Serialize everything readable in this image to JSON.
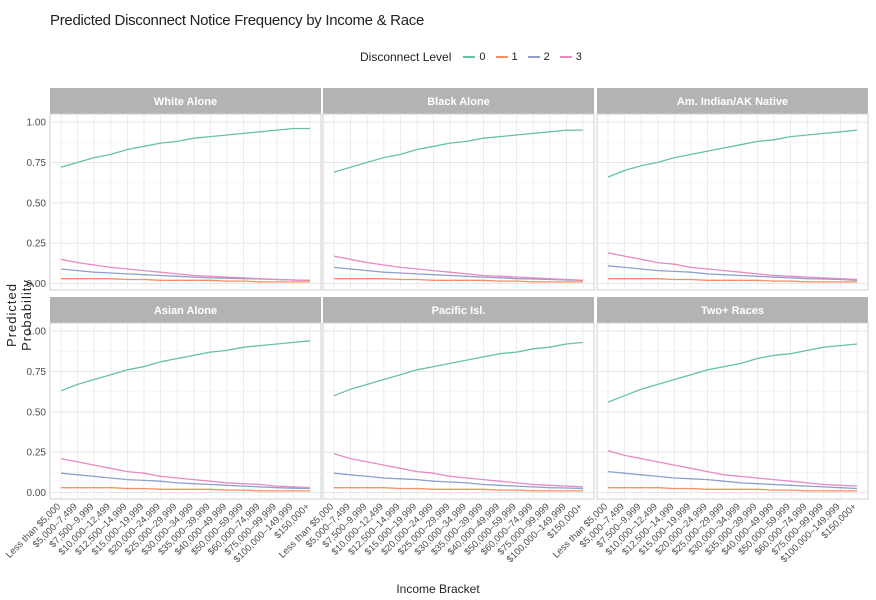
{
  "chart_data": {
    "type": "line",
    "title": "Predicted Disconnect Notice Frequency by Income & Race",
    "xlabel": "Income Bracket",
    "ylabel": "Predicted Probability",
    "ylim": [
      -0.04,
      1.05
    ],
    "yticks": [
      "0.00",
      "0.25",
      "0.50",
      "0.75",
      "1.00"
    ],
    "yticks_values": [
      0,
      0.25,
      0.5,
      0.75,
      1.0
    ],
    "grid": true,
    "legend": {
      "title": "Disconnect Level",
      "placement": "top",
      "entries": [
        {
          "label": "0",
          "color": "#66c2a5"
        },
        {
          "label": "1",
          "color": "#fc8d62"
        },
        {
          "label": "2",
          "color": "#8da0cb"
        },
        {
          "label": "3",
          "color": "#e78ac3"
        }
      ]
    },
    "categories": [
      "Less than $5,000",
      "$5,000–7,499",
      "$7,500–9,999",
      "$10,000–12,499",
      "$12,500–14,999",
      "$15,000–19,999",
      "$20,000–24,999",
      "$25,000–29,999",
      "$30,000–34,999",
      "$35,000–39,999",
      "$40,000–49,999",
      "$50,000–59,999",
      "$60,000–74,999",
      "$75,000–99,999",
      "$100,000–149,999",
      "$150,000+"
    ],
    "panels": [
      {
        "name": "White Alone",
        "series": [
          {
            "name": "0",
            "values": [
              0.72,
              0.75,
              0.78,
              0.8,
              0.83,
              0.85,
              0.87,
              0.88,
              0.9,
              0.91,
              0.92,
              0.93,
              0.94,
              0.95,
              0.96,
              0.96
            ]
          },
          {
            "name": "1",
            "values": [
              0.03,
              0.03,
              0.03,
              0.03,
              0.025,
              0.025,
              0.02,
              0.02,
              0.02,
              0.02,
              0.015,
              0.015,
              0.01,
              0.01,
              0.01,
              0.01
            ]
          },
          {
            "name": "2",
            "values": [
              0.09,
              0.08,
              0.07,
              0.065,
              0.06,
              0.055,
              0.05,
              0.045,
              0.04,
              0.035,
              0.033,
              0.03,
              0.028,
              0.025,
              0.022,
              0.02
            ]
          },
          {
            "name": "3",
            "values": [
              0.15,
              0.13,
              0.115,
              0.1,
              0.09,
              0.08,
              0.07,
              0.06,
              0.05,
              0.045,
              0.04,
              0.035,
              0.03,
              0.025,
              0.022,
              0.02
            ]
          }
        ]
      },
      {
        "name": "Black Alone",
        "series": [
          {
            "name": "0",
            "values": [
              0.69,
              0.72,
              0.75,
              0.78,
              0.8,
              0.83,
              0.85,
              0.87,
              0.88,
              0.9,
              0.91,
              0.92,
              0.93,
              0.94,
              0.95,
              0.95
            ]
          },
          {
            "name": "1",
            "values": [
              0.03,
              0.03,
              0.03,
              0.03,
              0.025,
              0.025,
              0.02,
              0.02,
              0.02,
              0.02,
              0.015,
              0.015,
              0.01,
              0.01,
              0.01,
              0.01
            ]
          },
          {
            "name": "2",
            "values": [
              0.1,
              0.09,
              0.08,
              0.07,
              0.065,
              0.06,
              0.055,
              0.05,
              0.045,
              0.04,
              0.035,
              0.03,
              0.028,
              0.025,
              0.022,
              0.02
            ]
          },
          {
            "name": "3",
            "values": [
              0.17,
              0.15,
              0.13,
              0.115,
              0.1,
              0.09,
              0.08,
              0.07,
              0.06,
              0.05,
              0.045,
              0.04,
              0.035,
              0.03,
              0.025,
              0.02
            ]
          }
        ]
      },
      {
        "name": "Am. Indian/AK Native",
        "series": [
          {
            "name": "0",
            "values": [
              0.66,
              0.7,
              0.73,
              0.75,
              0.78,
              0.8,
              0.82,
              0.84,
              0.86,
              0.88,
              0.89,
              0.91,
              0.92,
              0.93,
              0.94,
              0.95
            ]
          },
          {
            "name": "1",
            "values": [
              0.03,
              0.03,
              0.03,
              0.03,
              0.025,
              0.025,
              0.02,
              0.02,
              0.02,
              0.02,
              0.015,
              0.015,
              0.01,
              0.01,
              0.01,
              0.01
            ]
          },
          {
            "name": "2",
            "values": [
              0.11,
              0.1,
              0.09,
              0.08,
              0.075,
              0.07,
              0.06,
              0.055,
              0.05,
              0.045,
              0.04,
              0.035,
              0.03,
              0.028,
              0.025,
              0.02
            ]
          },
          {
            "name": "3",
            "values": [
              0.19,
              0.17,
              0.15,
              0.13,
              0.12,
              0.1,
              0.09,
              0.08,
              0.07,
              0.06,
              0.05,
              0.045,
              0.04,
              0.035,
              0.03,
              0.025
            ]
          }
        ]
      },
      {
        "name": "Asian Alone",
        "series": [
          {
            "name": "0",
            "values": [
              0.63,
              0.67,
              0.7,
              0.73,
              0.76,
              0.78,
              0.81,
              0.83,
              0.85,
              0.87,
              0.88,
              0.9,
              0.91,
              0.92,
              0.93,
              0.94
            ]
          },
          {
            "name": "1",
            "values": [
              0.03,
              0.03,
              0.03,
              0.03,
              0.025,
              0.025,
              0.02,
              0.02,
              0.02,
              0.02,
              0.015,
              0.015,
              0.01,
              0.01,
              0.01,
              0.01
            ]
          },
          {
            "name": "2",
            "values": [
              0.12,
              0.11,
              0.1,
              0.09,
              0.08,
              0.075,
              0.07,
              0.06,
              0.055,
              0.05,
              0.045,
              0.04,
              0.035,
              0.03,
              0.027,
              0.025
            ]
          },
          {
            "name": "3",
            "values": [
              0.21,
              0.19,
              0.17,
              0.15,
              0.13,
              0.12,
              0.1,
              0.09,
              0.08,
              0.07,
              0.06,
              0.055,
              0.05,
              0.04,
              0.035,
              0.03
            ]
          }
        ]
      },
      {
        "name": "Pacific Isl.",
        "series": [
          {
            "name": "0",
            "values": [
              0.6,
              0.64,
              0.67,
              0.7,
              0.73,
              0.76,
              0.78,
              0.8,
              0.82,
              0.84,
              0.86,
              0.87,
              0.89,
              0.9,
              0.92,
              0.93
            ]
          },
          {
            "name": "1",
            "values": [
              0.03,
              0.03,
              0.03,
              0.03,
              0.025,
              0.025,
              0.02,
              0.02,
              0.02,
              0.02,
              0.015,
              0.015,
              0.01,
              0.01,
              0.01,
              0.01
            ]
          },
          {
            "name": "2",
            "values": [
              0.12,
              0.11,
              0.1,
              0.09,
              0.085,
              0.08,
              0.07,
              0.065,
              0.06,
              0.05,
              0.045,
              0.04,
              0.035,
              0.03,
              0.028,
              0.025
            ]
          },
          {
            "name": "3",
            "values": [
              0.24,
              0.21,
              0.19,
              0.17,
              0.15,
              0.13,
              0.12,
              0.1,
              0.09,
              0.08,
              0.07,
              0.06,
              0.05,
              0.045,
              0.04,
              0.035
            ]
          }
        ]
      },
      {
        "name": "Two+ Races",
        "series": [
          {
            "name": "0",
            "values": [
              0.56,
              0.6,
              0.64,
              0.67,
              0.7,
              0.73,
              0.76,
              0.78,
              0.8,
              0.83,
              0.85,
              0.86,
              0.88,
              0.9,
              0.91,
              0.92
            ]
          },
          {
            "name": "1",
            "values": [
              0.03,
              0.03,
              0.03,
              0.03,
              0.025,
              0.025,
              0.02,
              0.02,
              0.02,
              0.02,
              0.015,
              0.015,
              0.01,
              0.01,
              0.01,
              0.01
            ]
          },
          {
            "name": "2",
            "values": [
              0.13,
              0.12,
              0.11,
              0.1,
              0.09,
              0.085,
              0.08,
              0.07,
              0.06,
              0.055,
              0.05,
              0.045,
              0.04,
              0.035,
              0.03,
              0.025
            ]
          },
          {
            "name": "3",
            "values": [
              0.26,
              0.23,
              0.21,
              0.19,
              0.17,
              0.15,
              0.13,
              0.11,
              0.1,
              0.09,
              0.08,
              0.07,
              0.06,
              0.05,
              0.045,
              0.04
            ]
          }
        ]
      }
    ]
  }
}
